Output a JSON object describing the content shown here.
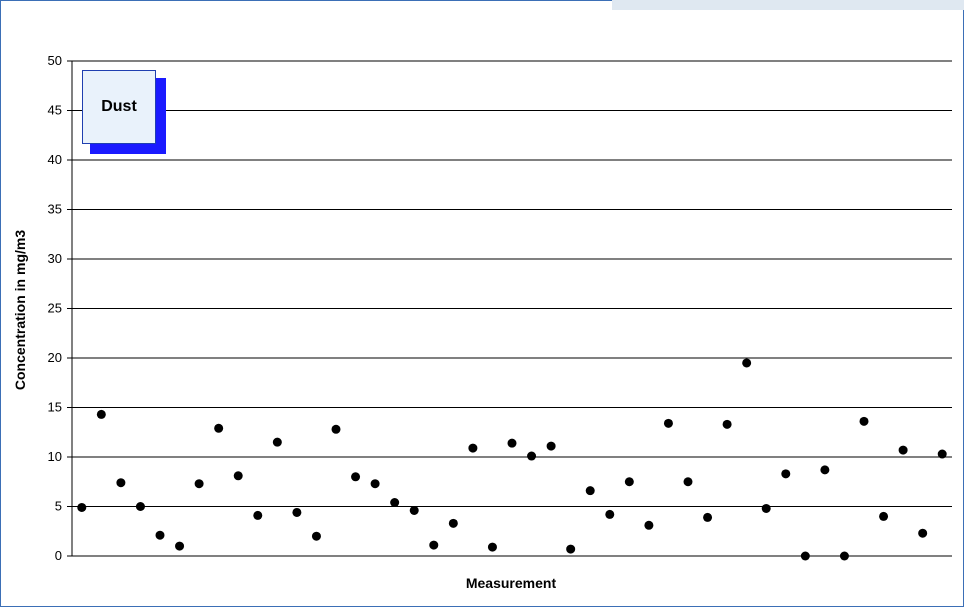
{
  "colors": {
    "frame": "#3b6fb6",
    "point": "#000000",
    "legend_fill": "#e9f2fb",
    "legend_shadow": "#1a1aff"
  },
  "chart_data": {
    "type": "scatter",
    "title": "",
    "xlabel": "Measurement",
    "ylabel": "Concentration in mg/m3",
    "ylim": [
      0,
      50
    ],
    "yticks": [
      "0",
      "5",
      "10",
      "15",
      "20",
      "25",
      "30",
      "35",
      "40",
      "45",
      "50"
    ],
    "grid": "horizontal",
    "legend_text": "Dust",
    "legend_position": "top-left",
    "series": [
      {
        "values": [
          4.9,
          14.3,
          7.4,
          5.0,
          2.1,
          1.0,
          7.3,
          12.9,
          8.1,
          4.1,
          11.5,
          4.4,
          2.0,
          12.8,
          8.0,
          7.3,
          5.4,
          4.6,
          1.1,
          3.3,
          10.9,
          0.9,
          11.4,
          10.1,
          11.1,
          0.7,
          6.6,
          4.2,
          7.5,
          3.1,
          13.4,
          7.5,
          3.9,
          13.3,
          19.5,
          4.8,
          8.3,
          0.0,
          8.7,
          0.0,
          13.6,
          4.0,
          10.7,
          2.3,
          10.3
        ]
      }
    ]
  }
}
